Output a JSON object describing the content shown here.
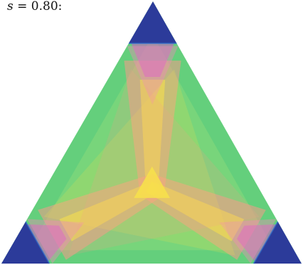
{
  "label": {
    "variable": "s",
    "equals": " = ",
    "value": "0.80",
    "suffix": ":"
  },
  "colors": {
    "corner": "#2c3b9a",
    "corner_edge": "#2a6fd0",
    "background_fill": "#64cf7c",
    "light_band": "#9ee07a",
    "yellow": "#f7e24a",
    "salmon": "#f79a88",
    "magenta": "#d258c8",
    "pink": "#f28ab8"
  }
}
